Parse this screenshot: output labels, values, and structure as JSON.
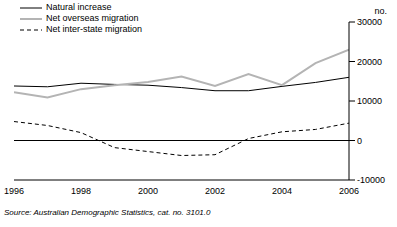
{
  "chart_data": {
    "type": "line",
    "ylabel": "no.",
    "source": "Source: Australian Demographic Statistics, cat. no. 3101.0",
    "x": [
      1996,
      1997,
      1998,
      1999,
      2000,
      2001,
      2002,
      2003,
      2004,
      2005,
      2006
    ],
    "series": [
      {
        "name": "Natural increase",
        "color": "#000000",
        "line_style": "solid",
        "values": [
          13800,
          13600,
          14500,
          14200,
          14000,
          13400,
          12600,
          12600,
          13700,
          14700,
          16000
        ]
      },
      {
        "name": "Net overseas migration",
        "color": "#b4b4b4",
        "line_style": "solid",
        "values": [
          12200,
          10900,
          13000,
          14000,
          14800,
          16200,
          13800,
          16800,
          14000,
          19600,
          23000
        ]
      },
      {
        "name": "Net inter-state migration",
        "color": "#000000",
        "line_style": "dashed",
        "values": [
          4800,
          3800,
          2000,
          -1800,
          -2800,
          -3800,
          -3600,
          500,
          2200,
          2800,
          4400
        ]
      }
    ],
    "xlim": [
      1996,
      2006
    ],
    "xticks": [
      1996,
      1998,
      2000,
      2002,
      2004,
      2006
    ],
    "ylim": [
      -10000,
      30000
    ],
    "yticks": [
      -10000,
      0,
      10000,
      20000,
      30000
    ],
    "grid": false,
    "legend": "top-left"
  }
}
